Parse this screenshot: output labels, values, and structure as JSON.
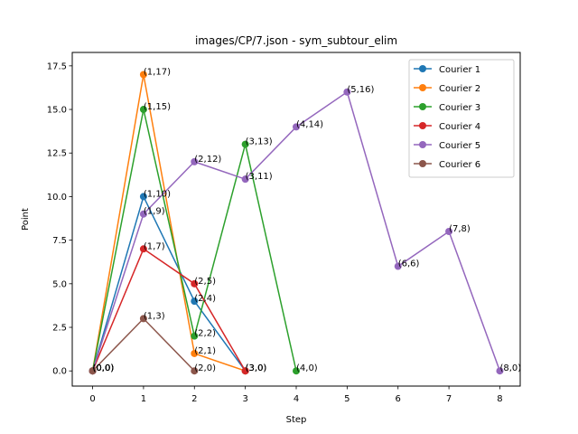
{
  "chart_data": {
    "type": "line",
    "title": "images/CP/7.json - sym_subtour_elim",
    "xlabel": "Step",
    "ylabel": "Point",
    "xlim": [
      -0.4,
      8.4
    ],
    "ylim": [
      -0.87,
      18.27
    ],
    "xticks": [
      0,
      1,
      2,
      3,
      4,
      5,
      6,
      7,
      8
    ],
    "yticks": [
      0.0,
      2.5,
      5.0,
      7.5,
      10.0,
      12.5,
      15.0,
      17.5
    ],
    "ytick_labels": [
      "0.0",
      "2.5",
      "5.0",
      "7.5",
      "10.0",
      "12.5",
      "15.0",
      "17.5"
    ],
    "grid": false,
    "legend_position": "top-right",
    "series": [
      {
        "name": "Courier 1",
        "color": "#1f77b4",
        "x": [
          0,
          1,
          2,
          3
        ],
        "y": [
          0,
          10,
          4,
          0
        ],
        "labels": [
          "(0,0)",
          "(1,10)",
          "(2,4)",
          "(3,0)"
        ]
      },
      {
        "name": "Courier 2",
        "color": "#ff7f0e",
        "x": [
          0,
          1,
          2,
          3
        ],
        "y": [
          0,
          17,
          1,
          0
        ],
        "labels": [
          "(0,0)",
          "(1,17)",
          "(2,1)",
          "(3,0)"
        ]
      },
      {
        "name": "Courier 3",
        "color": "#2ca02c",
        "x": [
          0,
          1,
          2,
          3,
          4
        ],
        "y": [
          0,
          15,
          2,
          13,
          0
        ],
        "labels": [
          "(0,0)",
          "(1,15)",
          "(2,2)",
          "(3,13)",
          "(4,0)"
        ]
      },
      {
        "name": "Courier 4",
        "color": "#d62728",
        "x": [
          0,
          1,
          2,
          3
        ],
        "y": [
          0,
          7,
          5,
          0
        ],
        "labels": [
          "(0,0)",
          "(1,7)",
          "(2,5)",
          "(3,0)"
        ]
      },
      {
        "name": "Courier 5",
        "color": "#9467bd",
        "x": [
          0,
          1,
          2,
          3,
          4,
          5,
          6,
          7,
          8
        ],
        "y": [
          0,
          9,
          12,
          11,
          14,
          16,
          6,
          8,
          0
        ],
        "labels": [
          "(0,0)",
          "(1,9)",
          "(2,12)",
          "(3,11)",
          "(4,14)",
          "(5,16)",
          "(6,6)",
          "(7,8)",
          "(8,0)"
        ]
      },
      {
        "name": "Courier 6",
        "color": "#8c564b",
        "x": [
          0,
          1,
          2
        ],
        "y": [
          0,
          3,
          0
        ],
        "labels": [
          "(0,0)",
          "(1,3)",
          "(2,0)"
        ]
      }
    ]
  }
}
